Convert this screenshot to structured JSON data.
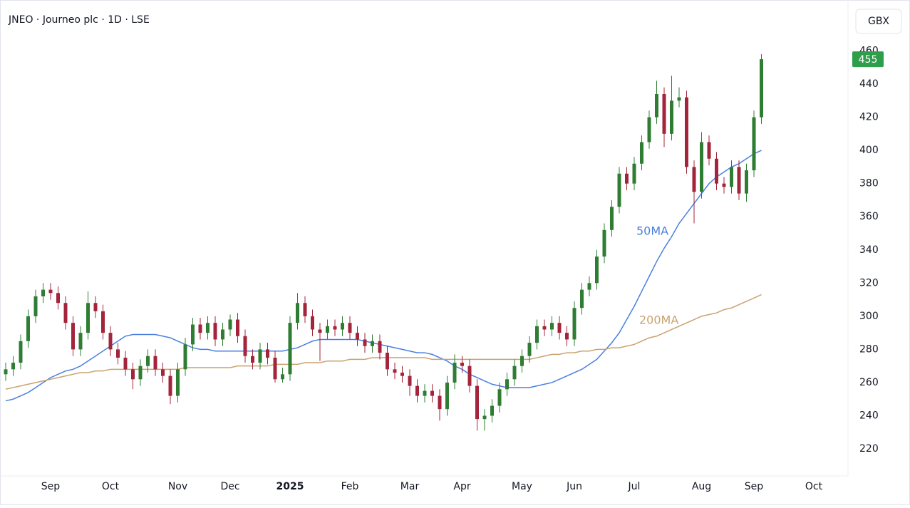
{
  "chart_data": {
    "type": "candlestick",
    "title": "JNEO · Journeo plc · 1D · LSE",
    "currency": "GBX",
    "categories": [
      null,
      null,
      null,
      null,
      null,
      null,
      "Sep",
      null,
      null,
      null,
      null,
      null,
      null,
      null,
      "Oct",
      null,
      null,
      null,
      null,
      null,
      null,
      null,
      null,
      "Nov",
      null,
      null,
      null,
      null,
      null,
      null,
      "Dec",
      null,
      null,
      null,
      null,
      null,
      null,
      null,
      "2025",
      null,
      null,
      null,
      null,
      null,
      null,
      null,
      "Feb",
      null,
      null,
      null,
      null,
      null,
      null,
      null,
      "Mar",
      null,
      null,
      null,
      null,
      null,
      null,
      "Apr",
      null,
      null,
      null,
      null,
      null,
      null,
      null,
      "May",
      null,
      null,
      null,
      null,
      null,
      null,
      "Jun",
      null,
      null,
      null,
      null,
      null,
      null,
      null,
      "Jul",
      null,
      null,
      null,
      null,
      null,
      null,
      null,
      null,
      "Aug",
      null,
      null,
      null,
      null,
      null,
      null,
      "Sep",
      null,
      null,
      null,
      null,
      null,
      null,
      null,
      "Oct"
    ],
    "open": [
      265,
      268,
      272,
      285,
      300,
      312,
      316,
      314,
      308,
      296,
      280,
      290,
      308,
      303,
      290,
      280,
      275,
      268,
      262,
      270,
      276,
      268,
      264,
      252,
      268,
      283,
      295,
      290,
      296,
      286,
      292,
      298,
      288,
      276,
      272,
      280,
      275,
      262,
      265,
      296,
      308,
      300,
      292,
      290,
      294,
      292,
      296,
      290,
      286,
      282,
      285,
      278,
      268,
      266,
      264,
      258,
      252,
      255,
      252,
      244,
      260,
      272,
      270,
      258,
      238,
      240,
      246,
      256,
      262,
      270,
      276,
      284,
      294,
      292,
      296,
      290,
      286,
      305,
      316,
      320,
      336,
      352,
      366,
      386,
      380,
      392,
      405,
      420,
      434,
      410,
      430,
      432,
      390,
      375,
      405,
      395,
      380,
      378,
      390,
      374,
      388,
      420,
      null,
      null,
      null,
      null,
      null,
      null,
      null
    ],
    "high": [
      272,
      276,
      289,
      304,
      316,
      320,
      320,
      318,
      312,
      300,
      294,
      315,
      312,
      307,
      294,
      284,
      279,
      272,
      274,
      280,
      280,
      272,
      268,
      272,
      287,
      299,
      299,
      300,
      300,
      296,
      301,
      302,
      292,
      280,
      284,
      284,
      279,
      269,
      300,
      314,
      312,
      304,
      296,
      298,
      298,
      300,
      300,
      294,
      290,
      289,
      289,
      282,
      272,
      270,
      268,
      262,
      259,
      259,
      256,
      264,
      277,
      276,
      274,
      262,
      244,
      250,
      260,
      266,
      274,
      280,
      288,
      298,
      298,
      300,
      300,
      294,
      309,
      320,
      324,
      340,
      356,
      370,
      390,
      390,
      396,
      409,
      424,
      442,
      438,
      445,
      438,
      436,
      394,
      411,
      409,
      399,
      384,
      394,
      394,
      392,
      424,
      458,
      null,
      null,
      null,
      null,
      null,
      null,
      null
    ],
    "low": [
      261,
      264,
      268,
      281,
      296,
      308,
      310,
      304,
      292,
      276,
      276,
      286,
      299,
      286,
      276,
      271,
      264,
      256,
      258,
      266,
      264,
      260,
      247,
      248,
      264,
      279,
      286,
      286,
      282,
      282,
      288,
      284,
      272,
      268,
      268,
      271,
      260,
      260,
      261,
      292,
      296,
      288,
      273,
      286,
      288,
      288,
      286,
      282,
      278,
      278,
      274,
      264,
      262,
      260,
      252,
      248,
      248,
      248,
      237,
      240,
      256,
      266,
      254,
      231,
      231,
      236,
      242,
      252,
      258,
      266,
      272,
      280,
      288,
      288,
      286,
      282,
      282,
      301,
      312,
      316,
      332,
      348,
      362,
      376,
      376,
      388,
      401,
      416,
      402,
      406,
      426,
      386,
      356,
      371,
      391,
      376,
      374,
      374,
      370,
      369,
      384,
      416,
      null,
      null,
      null,
      null,
      null,
      null,
      null
    ],
    "close": [
      268,
      272,
      285,
      300,
      312,
      316,
      314,
      308,
      296,
      280,
      290,
      308,
      303,
      290,
      280,
      275,
      268,
      262,
      270,
      276,
      268,
      264,
      252,
      268,
      283,
      295,
      290,
      296,
      286,
      292,
      298,
      288,
      276,
      272,
      280,
      275,
      262,
      265,
      296,
      308,
      300,
      292,
      290,
      294,
      292,
      296,
      290,
      286,
      282,
      285,
      278,
      268,
      266,
      264,
      258,
      252,
      255,
      252,
      244,
      260,
      272,
      270,
      258,
      238,
      240,
      246,
      256,
      262,
      270,
      276,
      284,
      294,
      292,
      296,
      290,
      286,
      305,
      316,
      320,
      336,
      352,
      366,
      386,
      380,
      392,
      405,
      420,
      434,
      410,
      430,
      432,
      390,
      375,
      405,
      395,
      380,
      378,
      390,
      374,
      388,
      420,
      455,
      null,
      null,
      null,
      null,
      null,
      null,
      null
    ],
    "up_color": "#2e7d32",
    "down_color": "#a3243b",
    "last_price_color": "#2e9e4b",
    "series": [
      {
        "name": "50MA",
        "color": "#4a7fe0",
        "values": [
          249,
          250,
          252,
          254,
          257,
          260,
          263,
          265,
          267,
          268,
          270,
          273,
          276,
          279,
          282,
          285,
          288,
          289,
          289,
          289,
          289,
          288,
          287,
          285,
          283,
          281,
          280,
          280,
          279,
          279,
          279,
          279,
          279,
          279,
          279,
          279,
          279,
          279,
          280,
          281,
          283,
          285,
          286,
          286,
          286,
          286,
          286,
          286,
          285,
          284,
          283,
          282,
          281,
          280,
          279,
          278,
          278,
          277,
          275,
          273,
          270,
          268,
          265,
          263,
          261,
          259,
          258,
          257,
          257,
          257,
          257,
          258,
          259,
          260,
          262,
          264,
          266,
          268,
          271,
          274,
          279,
          284,
          290,
          298,
          306,
          315,
          324,
          333,
          341,
          348,
          356,
          362,
          368,
          374,
          380,
          384,
          387,
          390,
          392,
          395,
          398,
          400,
          null,
          null,
          null,
          null,
          null,
          null,
          null
        ]
      },
      {
        "name": "200MA",
        "color": "#c9a26f",
        "values": [
          256,
          257,
          258,
          259,
          260,
          261,
          262,
          263,
          264,
          265,
          266,
          266,
          267,
          267,
          268,
          268,
          268,
          268,
          268,
          268,
          268,
          268,
          268,
          268,
          269,
          269,
          269,
          269,
          269,
          269,
          269,
          270,
          270,
          270,
          270,
          270,
          271,
          271,
          271,
          271,
          272,
          272,
          272,
          273,
          273,
          273,
          274,
          274,
          274,
          275,
          275,
          275,
          275,
          275,
          275,
          275,
          275,
          274,
          274,
          274,
          274,
          274,
          274,
          274,
          274,
          274,
          274,
          274,
          274,
          274,
          274,
          275,
          276,
          277,
          277,
          278,
          278,
          279,
          279,
          280,
          280,
          281,
          281,
          282,
          283,
          285,
          287,
          288,
          290,
          292,
          294,
          296,
          298,
          300,
          301,
          302,
          304,
          305,
          307,
          309,
          311,
          313,
          null,
          null,
          null,
          null,
          null,
          null,
          null
        ]
      }
    ],
    "ylim": [
      203.7,
      490.7
    ],
    "yticks": [
      220,
      240,
      260,
      280,
      300,
      320,
      340,
      360,
      380,
      400,
      420,
      440,
      460
    ]
  }
}
